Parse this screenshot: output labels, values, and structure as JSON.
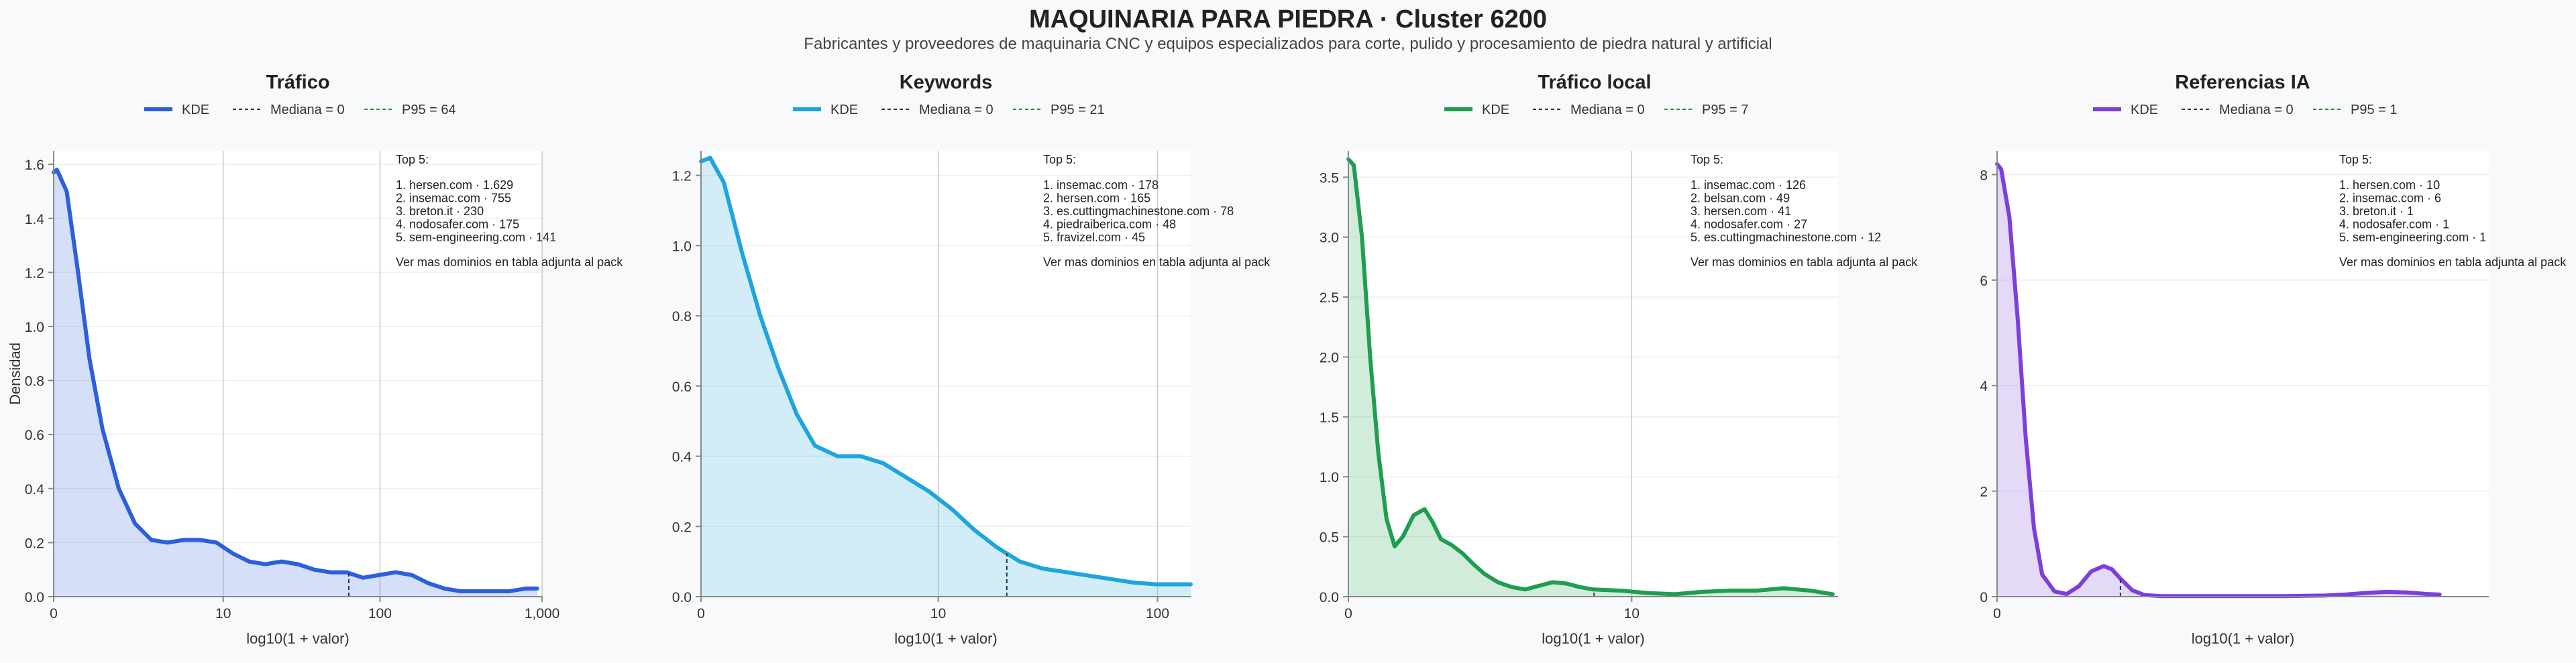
{
  "title": "MAQUINARIA PARA PIEDRA · Cluster 6200",
  "subtitle": "Fabricantes y proveedores de maquinaria CNC y equipos especializados para corte, pulido y procesamiento de piedra natural y artificial",
  "colors": {
    "trafico": "#2b5fdc",
    "keywords": "#1ea4de",
    "trafico_local": "#1f9e4f",
    "referencias_ia": "#7c3fdc",
    "median": "#333333",
    "p95": "#2e8b3a"
  },
  "shared": {
    "xlabel": "log10(1 + valor)",
    "ylabel": "Densidad",
    "top_heading": "Top 5:",
    "footnote": "Ver mas dominios en tabla adjunta al pack",
    "kde_label": "KDE"
  },
  "chart_data": [
    {
      "type": "area",
      "title": "Tráfico",
      "color_key": "trafico",
      "legend": [
        "KDE",
        "Mediana = 0",
        "P95 = 64"
      ],
      "xlabel": "log10(1 + valor)",
      "ylabel": "Densidad",
      "x_scale": "log10(1+x)",
      "xlim": [
        0,
        3.0
      ],
      "ylim": [
        0,
        1.65
      ],
      "xticks": [
        {
          "value": 0,
          "label": "0"
        },
        {
          "value": 10,
          "label": "10"
        },
        {
          "value": 100,
          "label": "100"
        },
        {
          "value": 1000,
          "label": "1,000"
        }
      ],
      "yticks": [
        0,
        0.2,
        0.4,
        0.6,
        0.8,
        1.0,
        1.2,
        1.4,
        1.6
      ],
      "ytick_labels": [
        "0.0",
        "0.2",
        "0.4",
        "0.6",
        "0.8",
        "1.0",
        "1.2",
        "1.4",
        "1.6"
      ],
      "median": 0,
      "p95": 64,
      "x": [
        0,
        0.02,
        0.08,
        0.15,
        0.22,
        0.3,
        0.4,
        0.5,
        0.6,
        0.7,
        0.8,
        0.9,
        1.0,
        1.1,
        1.2,
        1.3,
        1.4,
        1.5,
        1.6,
        1.7,
        1.8,
        1.9,
        2.0,
        2.1,
        2.2,
        2.3,
        2.4,
        2.5,
        2.6,
        2.7,
        2.8,
        2.9,
        2.97
      ],
      "y": [
        1.57,
        1.58,
        1.5,
        1.2,
        0.88,
        0.62,
        0.4,
        0.27,
        0.21,
        0.2,
        0.21,
        0.21,
        0.2,
        0.16,
        0.13,
        0.12,
        0.13,
        0.12,
        0.1,
        0.09,
        0.09,
        0.07,
        0.08,
        0.09,
        0.08,
        0.05,
        0.03,
        0.02,
        0.02,
        0.02,
        0.02,
        0.03,
        0.03
      ],
      "top5_heading": "Top 5:",
      "top5": [
        "1. hersen.com · 1.629",
        "2. insemac.com · 755",
        "3. breton.it · 230",
        "4. nodosafer.com · 175",
        "5. sem-engineering.com · 141"
      ],
      "footnote": "Ver mas dominios en tabla adjunta al pack"
    },
    {
      "type": "area",
      "title": "Keywords",
      "color_key": "keywords",
      "legend": [
        "KDE",
        "Mediana = 0",
        "P95 = 21"
      ],
      "xlabel": "log10(1 + valor)",
      "ylabel": "",
      "x_scale": "log10(1+x)",
      "xlim": [
        0,
        2.15
      ],
      "ylim": [
        0,
        1.27
      ],
      "xticks": [
        {
          "value": 0,
          "label": "0"
        },
        {
          "value": 10,
          "label": "10"
        },
        {
          "value": 100,
          "label": "100"
        }
      ],
      "yticks": [
        0,
        0.2,
        0.4,
        0.6,
        0.8,
        1.0,
        1.2
      ],
      "ytick_labels": [
        "0.0",
        "0.2",
        "0.4",
        "0.6",
        "0.8",
        "1.0",
        "1.2"
      ],
      "median": 0,
      "p95": 21,
      "x": [
        0,
        0.04,
        0.1,
        0.18,
        0.26,
        0.34,
        0.42,
        0.5,
        0.6,
        0.7,
        0.8,
        0.9,
        1.0,
        1.1,
        1.2,
        1.3,
        1.4,
        1.5,
        1.6,
        1.7,
        1.8,
        1.9,
        2.0,
        2.1,
        2.15
      ],
      "y": [
        1.24,
        1.25,
        1.18,
        0.98,
        0.8,
        0.65,
        0.52,
        0.43,
        0.4,
        0.4,
        0.38,
        0.34,
        0.3,
        0.25,
        0.19,
        0.14,
        0.1,
        0.08,
        0.07,
        0.06,
        0.05,
        0.04,
        0.035,
        0.035,
        0.035
      ],
      "top5_heading": "Top 5:",
      "top5": [
        "1. insemac.com · 178",
        "2. hersen.com · 165",
        "3. es.cuttingmachinestone.com · 78",
        "4. piedraiberica.com · 48",
        "5. fravizel.com · 45"
      ],
      "footnote": "Ver mas dominios en tabla adjunta al pack"
    },
    {
      "type": "area",
      "title": "Tráfico local",
      "color_key": "trafico_local",
      "legend": [
        "KDE",
        "Mediana = 0",
        "P95 = 7"
      ],
      "xlabel": "log10(1 + valor)",
      "ylabel": "",
      "x_scale": "log10(1+x)",
      "xlim": [
        0,
        1.8
      ],
      "ylim": [
        0,
        3.72
      ],
      "xticks": [
        {
          "value": 0,
          "label": "0"
        },
        {
          "value": 10,
          "label": "10"
        }
      ],
      "yticks": [
        0,
        0.5,
        1.0,
        1.5,
        2.0,
        2.5,
        3.0,
        3.5
      ],
      "ytick_labels": [
        "0.0",
        "0.5",
        "1.0",
        "1.5",
        "2.0",
        "2.5",
        "3.0",
        "3.5"
      ],
      "median": 0,
      "p95": 7,
      "x": [
        0,
        0.02,
        0.05,
        0.08,
        0.11,
        0.14,
        0.17,
        0.2,
        0.24,
        0.28,
        0.31,
        0.34,
        0.38,
        0.42,
        0.46,
        0.5,
        0.55,
        0.6,
        0.65,
        0.7,
        0.75,
        0.8,
        0.85,
        0.9,
        1.0,
        1.1,
        1.2,
        1.3,
        1.4,
        1.5,
        1.6,
        1.7,
        1.78
      ],
      "y": [
        3.65,
        3.6,
        3.0,
        2.0,
        1.2,
        0.65,
        0.42,
        0.5,
        0.68,
        0.73,
        0.62,
        0.48,
        0.43,
        0.36,
        0.27,
        0.19,
        0.12,
        0.08,
        0.06,
        0.09,
        0.12,
        0.11,
        0.08,
        0.06,
        0.05,
        0.03,
        0.02,
        0.04,
        0.05,
        0.05,
        0.07,
        0.05,
        0.02
      ],
      "top5_heading": "Top 5:",
      "top5": [
        "1. insemac.com · 126",
        "2. belsan.com · 49",
        "3. hersen.com · 41",
        "4. nodosafer.com · 27",
        "5. es.cuttingmachinestone.com · 12"
      ],
      "footnote": "Ver mas dominios en tabla adjunta al pack"
    },
    {
      "type": "area",
      "title": "Referencias IA",
      "color_key": "referencias_ia",
      "legend": [
        "KDE",
        "Mediana = 0",
        "P95 = 1"
      ],
      "xlabel": "log10(1 + valor)",
      "ylabel": "",
      "x_scale": "log10(1+x)",
      "xlim": [
        0,
        1.2
      ],
      "ylim": [
        0,
        8.45
      ],
      "xticks": [
        {
          "value": 0,
          "label": "0"
        }
      ],
      "yticks": [
        0,
        2,
        4,
        6,
        8
      ],
      "ytick_labels": [
        "0",
        "2",
        "4",
        "6",
        "8"
      ],
      "median": 0,
      "p95": 1,
      "x": [
        0,
        0.01,
        0.03,
        0.05,
        0.07,
        0.09,
        0.11,
        0.14,
        0.17,
        0.2,
        0.23,
        0.26,
        0.28,
        0.3,
        0.33,
        0.36,
        0.4,
        0.45,
        0.5,
        0.6,
        0.7,
        0.8,
        0.85,
        0.9,
        0.95,
        1.0,
        1.05,
        1.08
      ],
      "y": [
        8.2,
        8.1,
        7.2,
        5.3,
        3.0,
        1.3,
        0.42,
        0.1,
        0.05,
        0.2,
        0.48,
        0.58,
        0.52,
        0.35,
        0.12,
        0.03,
        0.01,
        0.01,
        0.01,
        0.01,
        0.01,
        0.02,
        0.04,
        0.07,
        0.09,
        0.08,
        0.05,
        0.04
      ],
      "top5_heading": "Top 5:",
      "top5": [
        "1. hersen.com · 10",
        "2. insemac.com · 6",
        "3. breton.it · 1",
        "4. nodosafer.com · 1",
        "5. sem-engineering.com · 1"
      ],
      "footnote": "Ver mas dominios en tabla adjunta al pack"
    }
  ]
}
